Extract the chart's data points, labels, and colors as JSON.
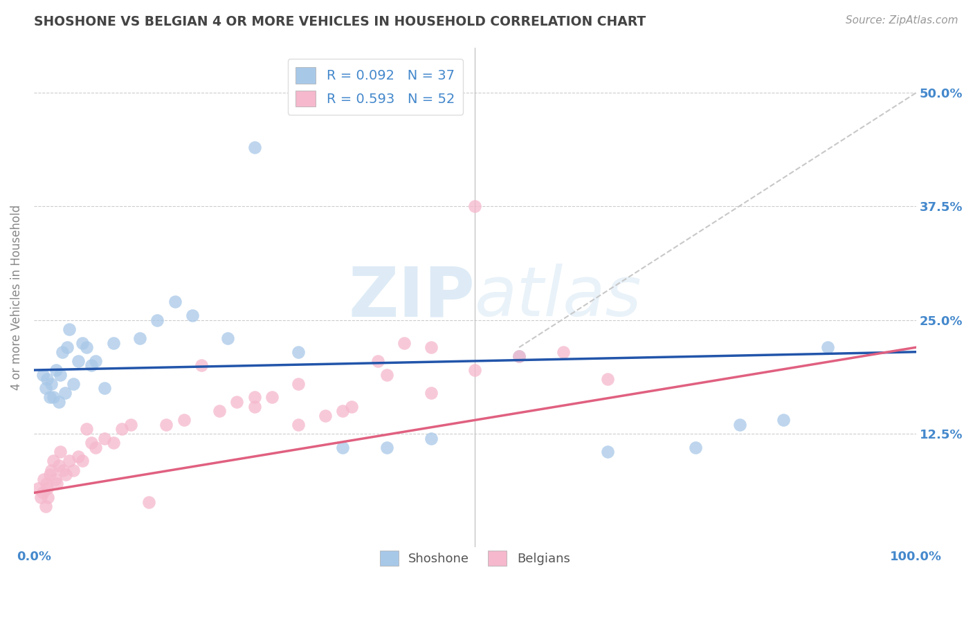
{
  "title": "SHOSHONE VS BELGIAN 4 OR MORE VEHICLES IN HOUSEHOLD CORRELATION CHART",
  "source": "Source: ZipAtlas.com",
  "ylabel": "4 or more Vehicles in Household",
  "xlim": [
    0,
    100
  ],
  "ylim": [
    0,
    55
  ],
  "yticks": [
    0,
    12.5,
    25.0,
    37.5,
    50.0
  ],
  "shoshone_R": 0.092,
  "shoshone_N": 37,
  "belgians_R": 0.593,
  "belgians_N": 52,
  "shoshone_color": "#a8c8e8",
  "belgians_color": "#f5b8cc",
  "shoshone_line_color": "#2255aa",
  "belgians_line_color": "#e06080",
  "grid_color": "#cccccc",
  "dash_color": "#c8c8c8",
  "background_color": "#ffffff",
  "watermark_color": "#c8dff0",
  "tick_color": "#4488cc",
  "ylabel_color": "#888888",
  "title_color": "#444444",
  "source_color": "#999999",
  "shoshone_x": [
    1.0,
    1.3,
    1.5,
    1.8,
    2.0,
    2.2,
    2.5,
    2.8,
    3.0,
    3.2,
    3.5,
    3.8,
    4.0,
    4.5,
    5.0,
    5.5,
    6.0,
    6.5,
    7.0,
    8.0,
    9.0,
    12.0,
    14.0,
    16.0,
    18.0,
    22.0,
    25.0,
    30.0,
    35.0,
    40.0,
    45.0,
    55.0,
    65.0,
    75.0,
    80.0,
    85.0,
    90.0
  ],
  "shoshone_y": [
    19.0,
    17.5,
    18.5,
    16.5,
    18.0,
    16.5,
    19.5,
    16.0,
    19.0,
    21.5,
    17.0,
    22.0,
    24.0,
    18.0,
    20.5,
    22.5,
    22.0,
    20.0,
    20.5,
    17.5,
    22.5,
    23.0,
    25.0,
    27.0,
    25.5,
    23.0,
    44.0,
    21.5,
    11.0,
    11.0,
    12.0,
    21.0,
    10.5,
    11.0,
    13.5,
    14.0,
    22.0
  ],
  "belgians_x": [
    0.5,
    0.8,
    1.0,
    1.1,
    1.3,
    1.4,
    1.5,
    1.6,
    1.8,
    2.0,
    2.2,
    2.4,
    2.6,
    2.8,
    3.0,
    3.3,
    3.6,
    4.0,
    4.5,
    5.0,
    5.5,
    6.0,
    6.5,
    7.0,
    8.0,
    9.0,
    10.0,
    11.0,
    13.0,
    15.0,
    17.0,
    19.0,
    21.0,
    23.0,
    25.0,
    27.0,
    30.0,
    33.0,
    36.0,
    39.0,
    42.0,
    45.0,
    50.0,
    55.0,
    60.0,
    65.0,
    25.0,
    30.0,
    35.0,
    40.0,
    45.0,
    50.0
  ],
  "belgians_y": [
    6.5,
    5.5,
    6.0,
    7.5,
    4.5,
    7.0,
    6.5,
    5.5,
    8.0,
    8.5,
    9.5,
    7.5,
    7.0,
    9.0,
    10.5,
    8.5,
    8.0,
    9.5,
    8.5,
    10.0,
    9.5,
    13.0,
    11.5,
    11.0,
    12.0,
    11.5,
    13.0,
    13.5,
    5.0,
    13.5,
    14.0,
    20.0,
    15.0,
    16.0,
    15.5,
    16.5,
    18.0,
    14.5,
    15.5,
    20.5,
    22.5,
    17.0,
    19.5,
    21.0,
    21.5,
    18.5,
    16.5,
    13.5,
    15.0,
    19.0,
    22.0,
    37.5
  ],
  "shoshone_line_x": [
    0,
    100
  ],
  "shoshone_line_y": [
    19.5,
    21.5
  ],
  "belgians_line_x": [
    0,
    100
  ],
  "belgians_line_y": [
    6.0,
    22.0
  ],
  "dash_line_x": [
    55,
    100
  ],
  "dash_line_y": [
    22,
    50
  ]
}
